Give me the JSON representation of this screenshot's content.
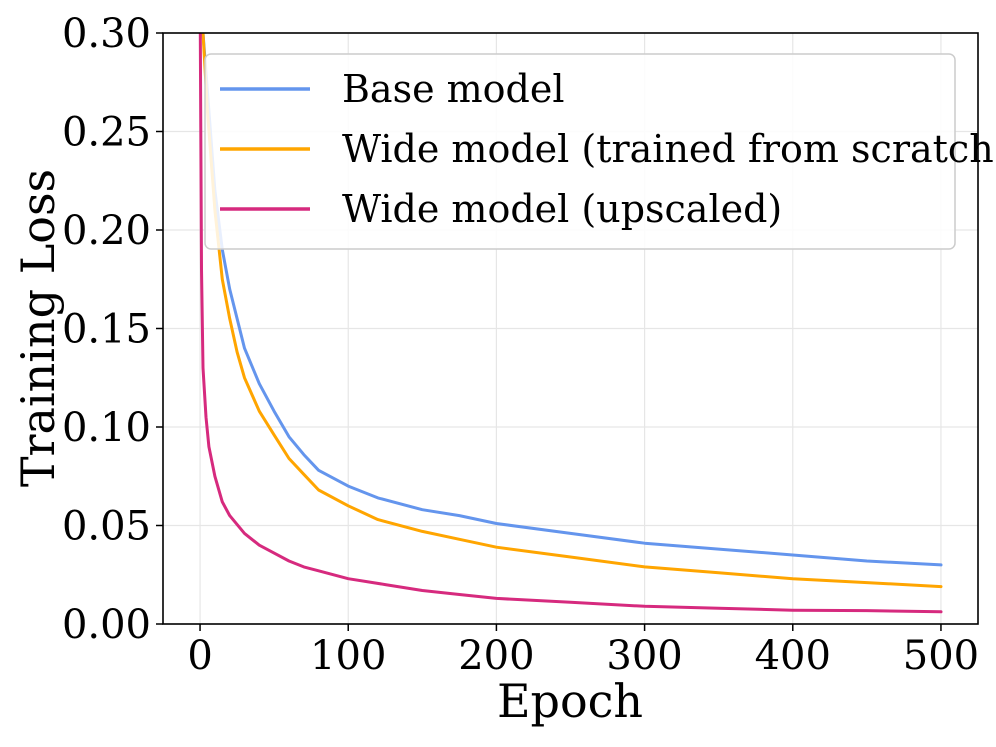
{
  "chart_data": {
    "type": "line",
    "title": "",
    "xlabel": "Epoch",
    "ylabel": "Training Loss",
    "xlim": [
      -25,
      525
    ],
    "ylim": [
      0.0,
      0.3
    ],
    "xticks": [
      0,
      100,
      200,
      300,
      400,
      500
    ],
    "xtick_labels": [
      "0",
      "100",
      "200",
      "300",
      "400",
      "500"
    ],
    "yticks": [
      0.0,
      0.05,
      0.1,
      0.15,
      0.2,
      0.25,
      0.3
    ],
    "ytick_labels": [
      "0.00",
      "0.05",
      "0.10",
      "0.15",
      "0.20",
      "0.25",
      "0.30"
    ],
    "grid": true,
    "legend_position": "top-right",
    "series": [
      {
        "name": "Base model",
        "color": "#6495ED",
        "x": [
          0,
          2,
          5,
          10,
          15,
          20,
          25,
          30,
          40,
          50,
          60,
          70,
          80,
          100,
          120,
          150,
          175,
          200,
          250,
          300,
          350,
          400,
          450,
          500
        ],
        "y": [
          0.33,
          0.3,
          0.27,
          0.22,
          0.19,
          0.17,
          0.155,
          0.14,
          0.122,
          0.108,
          0.095,
          0.086,
          0.078,
          0.07,
          0.064,
          0.058,
          0.055,
          0.051,
          0.046,
          0.041,
          0.038,
          0.035,
          0.032,
          0.03
        ]
      },
      {
        "name": "Wide model (trained from scratch)",
        "color": "#FFA500",
        "x": [
          0,
          2,
          5,
          10,
          15,
          20,
          25,
          30,
          40,
          50,
          60,
          70,
          80,
          100,
          120,
          150,
          175,
          200,
          250,
          300,
          350,
          400,
          450,
          500
        ],
        "y": [
          0.33,
          0.3,
          0.26,
          0.21,
          0.175,
          0.155,
          0.138,
          0.125,
          0.108,
          0.096,
          0.084,
          0.076,
          0.068,
          0.06,
          0.053,
          0.047,
          0.043,
          0.039,
          0.034,
          0.029,
          0.026,
          0.023,
          0.021,
          0.019
        ]
      },
      {
        "name": "Wide model (upscaled)",
        "color": "#D62A7E",
        "x": [
          0,
          1,
          2,
          4,
          6,
          10,
          15,
          20,
          30,
          40,
          50,
          60,
          70,
          80,
          100,
          125,
          150,
          175,
          200,
          250,
          300,
          350,
          400,
          450,
          500
        ],
        "y": [
          0.33,
          0.18,
          0.13,
          0.105,
          0.09,
          0.075,
          0.062,
          0.055,
          0.046,
          0.04,
          0.036,
          0.032,
          0.029,
          0.027,
          0.023,
          0.02,
          0.017,
          0.015,
          0.013,
          0.011,
          0.009,
          0.008,
          0.007,
          0.0068,
          0.0062
        ]
      }
    ]
  }
}
